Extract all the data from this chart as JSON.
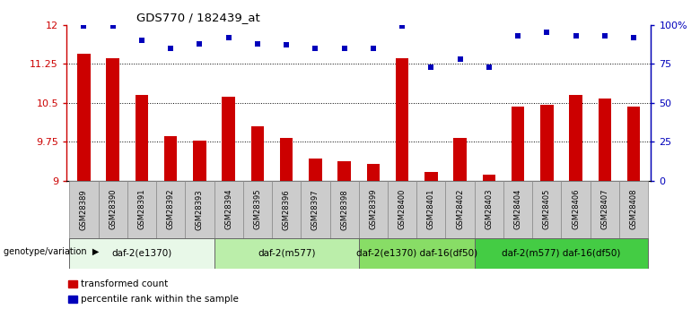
{
  "title": "GDS770 / 182439_at",
  "samples": [
    "GSM28389",
    "GSM28390",
    "GSM28391",
    "GSM28392",
    "GSM28393",
    "GSM28394",
    "GSM28395",
    "GSM28396",
    "GSM28397",
    "GSM28398",
    "GSM28399",
    "GSM28400",
    "GSM28401",
    "GSM28402",
    "GSM28403",
    "GSM28404",
    "GSM28405",
    "GSM28406",
    "GSM28407",
    "GSM28408"
  ],
  "bar_values": [
    11.45,
    11.35,
    10.65,
    9.85,
    9.78,
    10.62,
    10.05,
    9.82,
    9.43,
    9.38,
    9.32,
    11.35,
    9.17,
    9.82,
    9.12,
    10.43,
    10.46,
    10.65,
    10.58,
    10.43
  ],
  "dot_values_pct": [
    99,
    99,
    90,
    85,
    88,
    92,
    88,
    87,
    85,
    85,
    85,
    99,
    73,
    78,
    73,
    93,
    95,
    93,
    93,
    92
  ],
  "ylim_left": [
    9.0,
    12.0
  ],
  "ylim_right": [
    0,
    100
  ],
  "yticks_left": [
    9.0,
    9.75,
    10.5,
    11.25,
    12.0
  ],
  "yticks_right": [
    0,
    25,
    50,
    75,
    100
  ],
  "ytick_labels_left": [
    "9",
    "9.75",
    "10.5",
    "11.25",
    "12"
  ],
  "ytick_labels_right": [
    "0",
    "25",
    "50",
    "75",
    "100%"
  ],
  "bar_color": "#cc0000",
  "dot_color": "#0000bb",
  "groups": [
    {
      "label": "daf-2(e1370)",
      "start": 0,
      "end": 4,
      "color": "#e8f8e8"
    },
    {
      "label": "daf-2(m577)",
      "start": 5,
      "end": 9,
      "color": "#bbeeaa"
    },
    {
      "label": "daf-2(e1370) daf-16(df50)",
      "start": 10,
      "end": 13,
      "color": "#88dd66"
    },
    {
      "label": "daf-2(m577) daf-16(df50)",
      "start": 14,
      "end": 19,
      "color": "#44cc44"
    }
  ],
  "group_row_label": "genotype/variation",
  "bar_area_bg": "#ffffff",
  "xtick_bg": "#cccccc",
  "legend_items": [
    {
      "label": "transformed count",
      "color": "#cc0000"
    },
    {
      "label": "percentile rank within the sample",
      "color": "#0000bb"
    }
  ]
}
